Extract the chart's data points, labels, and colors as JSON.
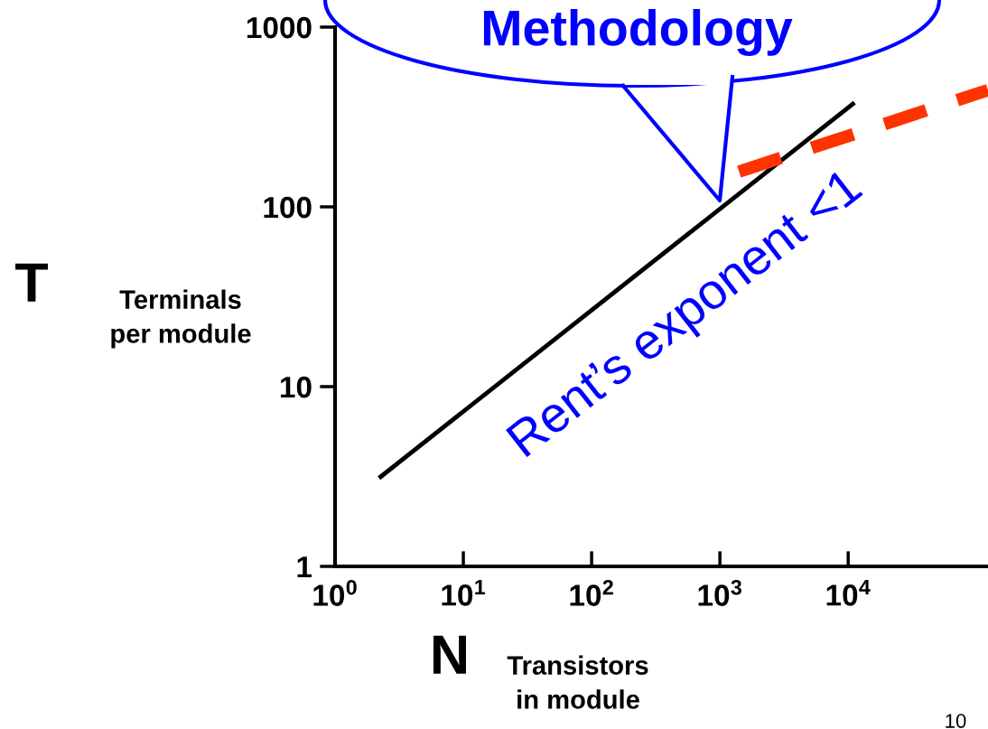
{
  "chart_data": {
    "type": "line",
    "log": "xy",
    "xlabel": "N Transistors\nin module",
    "ylabel": "T Terminals\nper module",
    "xlim": [
      1,
      123000
    ],
    "ylim": [
      1,
      1000
    ],
    "xticks": [
      {
        "value": 1,
        "label": "10$^{0}$"
      },
      {
        "value": 10,
        "label": "10$^{1}$"
      },
      {
        "value": 100,
        "label": "10$^{2}$"
      },
      {
        "value": 1000,
        "label": "10$^{3}$"
      },
      {
        "value": 10000,
        "label": "10$^{4}$"
      }
    ],
    "yticks": [
      1,
      10,
      100,
      1000
    ],
    "series": [
      {
        "x": [
          2.2,
          11200
        ],
        "values": [
          3.1,
          380
        ],
        "color": "#000000",
        "line_style": "solid"
      },
      {
        "x": [
          1410,
          123000
        ],
        "values": [
          157,
          446
        ],
        "color": "#ff3300",
        "line_style": "dashed"
      }
    ],
    "annotations": [
      "Rent’s exponent <1",
      "Methodology",
      "10"
    ],
    "grid": false,
    "legend": false,
    "marker": "none"
  }
}
